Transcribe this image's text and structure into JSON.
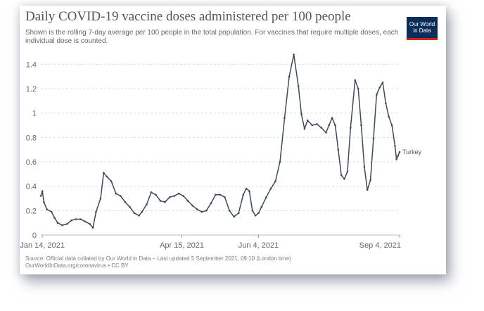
{
  "chart_data": {
    "type": "line",
    "title": "Daily COVID-19 vaccine doses administered per 100 people",
    "subtitle": "Shown is the rolling 7-day average per 100 people in the total population. For vaccines that require multiple doses, each individual dose is counted.",
    "xlabel": "",
    "ylabel": "",
    "ylim": [
      0,
      1.5
    ],
    "xlim": [
      "2021-01-13",
      "2021-09-04"
    ],
    "yticks": [
      "0",
      "0.2",
      "0.4",
      "0.6",
      "0.8",
      "1",
      "1.2",
      "1.4"
    ],
    "xticks": [
      {
        "label": "Jan 14, 2021",
        "date": "2021-01-14"
      },
      {
        "label": "Apr 15, 2021",
        "date": "2021-04-15"
      },
      {
        "label": "Jun 4, 2021",
        "date": "2021-06-04"
      },
      {
        "label": "Sep 4, 2021",
        "date": "2021-09-04"
      }
    ],
    "grid": "horizontal",
    "series": [
      {
        "name": "Turkey",
        "color": "#3c4a5a",
        "points": [
          [
            "2021-01-13",
            0.32
          ],
          [
            "2021-01-14",
            0.36
          ],
          [
            "2021-01-15",
            0.27
          ],
          [
            "2021-01-17",
            0.21
          ],
          [
            "2021-01-20",
            0.19
          ],
          [
            "2021-01-22",
            0.14
          ],
          [
            "2021-01-24",
            0.1
          ],
          [
            "2021-01-27",
            0.08
          ],
          [
            "2021-01-30",
            0.09
          ],
          [
            "2021-02-02",
            0.12
          ],
          [
            "2021-02-05",
            0.13
          ],
          [
            "2021-02-08",
            0.13
          ],
          [
            "2021-02-11",
            0.11
          ],
          [
            "2021-02-14",
            0.09
          ],
          [
            "2021-02-16",
            0.06
          ],
          [
            "2021-02-18",
            0.19
          ],
          [
            "2021-02-21",
            0.3
          ],
          [
            "2021-02-23",
            0.51
          ],
          [
            "2021-02-25",
            0.48
          ],
          [
            "2021-02-28",
            0.44
          ],
          [
            "2021-03-03",
            0.34
          ],
          [
            "2021-03-06",
            0.32
          ],
          [
            "2021-03-09",
            0.27
          ],
          [
            "2021-03-12",
            0.23
          ],
          [
            "2021-03-15",
            0.18
          ],
          [
            "2021-03-18",
            0.16
          ],
          [
            "2021-03-20",
            0.19
          ],
          [
            "2021-03-23",
            0.25
          ],
          [
            "2021-03-26",
            0.35
          ],
          [
            "2021-03-29",
            0.33
          ],
          [
            "2021-04-01",
            0.28
          ],
          [
            "2021-04-04",
            0.27
          ],
          [
            "2021-04-07",
            0.31
          ],
          [
            "2021-04-10",
            0.32
          ],
          [
            "2021-04-13",
            0.34
          ],
          [
            "2021-04-16",
            0.32
          ],
          [
            "2021-04-19",
            0.28
          ],
          [
            "2021-04-22",
            0.24
          ],
          [
            "2021-04-25",
            0.21
          ],
          [
            "2021-04-28",
            0.19
          ],
          [
            "2021-05-01",
            0.2
          ],
          [
            "2021-05-04",
            0.26
          ],
          [
            "2021-05-07",
            0.33
          ],
          [
            "2021-05-10",
            0.33
          ],
          [
            "2021-05-13",
            0.31
          ],
          [
            "2021-05-16",
            0.2
          ],
          [
            "2021-05-19",
            0.15
          ],
          [
            "2021-05-22",
            0.18
          ],
          [
            "2021-05-25",
            0.33
          ],
          [
            "2021-05-27",
            0.38
          ],
          [
            "2021-05-29",
            0.36
          ],
          [
            "2021-05-31",
            0.2
          ],
          [
            "2021-06-02",
            0.16
          ],
          [
            "2021-06-04",
            0.18
          ],
          [
            "2021-06-06",
            0.23
          ],
          [
            "2021-06-09",
            0.31
          ],
          [
            "2021-06-12",
            0.38
          ],
          [
            "2021-06-15",
            0.44
          ],
          [
            "2021-06-18",
            0.6
          ],
          [
            "2021-06-21",
            0.96
          ],
          [
            "2021-06-24",
            1.3
          ],
          [
            "2021-06-27",
            1.48
          ],
          [
            "2021-06-30",
            1.22
          ],
          [
            "2021-07-02",
            0.99
          ],
          [
            "2021-07-04",
            0.87
          ],
          [
            "2021-07-06",
            0.94
          ],
          [
            "2021-07-09",
            0.9
          ],
          [
            "2021-07-12",
            0.91
          ],
          [
            "2021-07-15",
            0.88
          ],
          [
            "2021-07-18",
            0.84
          ],
          [
            "2021-07-20",
            0.9
          ],
          [
            "2021-07-22",
            0.96
          ],
          [
            "2021-07-24",
            0.9
          ],
          [
            "2021-07-26",
            0.7
          ],
          [
            "2021-07-28",
            0.49
          ],
          [
            "2021-07-30",
            0.46
          ],
          [
            "2021-08-01",
            0.52
          ],
          [
            "2021-08-03",
            0.88
          ],
          [
            "2021-08-06",
            1.27
          ],
          [
            "2021-08-08",
            1.2
          ],
          [
            "2021-08-10",
            0.9
          ],
          [
            "2021-08-12",
            0.56
          ],
          [
            "2021-08-14",
            0.37
          ],
          [
            "2021-08-16",
            0.45
          ],
          [
            "2021-08-18",
            0.79
          ],
          [
            "2021-08-20",
            1.15
          ],
          [
            "2021-08-22",
            1.21
          ],
          [
            "2021-08-24",
            1.25
          ],
          [
            "2021-08-26",
            1.08
          ],
          [
            "2021-08-28",
            0.97
          ],
          [
            "2021-08-30",
            0.9
          ],
          [
            "2021-09-01",
            0.73
          ],
          [
            "2021-09-02",
            0.62
          ],
          [
            "2021-09-03",
            0.65
          ],
          [
            "2021-09-04",
            0.68
          ]
        ]
      }
    ]
  },
  "header": {
    "title": "Daily COVID-19 vaccine doses administered per 100 people",
    "subtitle": "Shown is the rolling 7-day average per 100 people in the total population. For vaccines that require multiple doses, each individual dose is counted."
  },
  "logo": {
    "line1": "Our World",
    "line2": "in Data",
    "bg": "#0b2d5a",
    "accent": "#ce261e"
  },
  "footer": {
    "source": "Source: Official data collated by Our World in Data – Last updated 5 September 2021, 09:10 (London time)",
    "url": "OurWorldInData.org/coronavirus • CC BY"
  }
}
